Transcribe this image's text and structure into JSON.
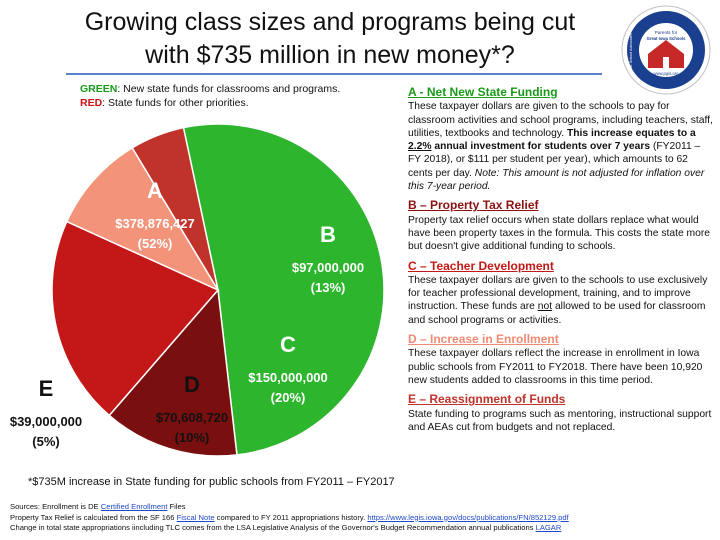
{
  "title_line1": "Growing class sizes and programs being cut",
  "title_line2": "with $735 million in new money*?",
  "logo": {
    "line1": "Parents for",
    "line2": "Great Iowa Schools",
    "circle_text": "Public School Advocates",
    "url": "www.pgis.org"
  },
  "legend": {
    "green_key": "GREEN",
    "green_text": ": New state funds for classrooms and programs.",
    "red_key": "RED",
    "red_text": ": State funds for other priorities."
  },
  "colors": {
    "A": "#2db52d",
    "B": "#7a0f0f",
    "C": "#c41818",
    "D": "#f2937a",
    "E": "#c0332a"
  },
  "chart_data": {
    "type": "pie",
    "slices": [
      {
        "label": "A",
        "value": 378876427,
        "display": "$378,876,427",
        "percent": "(52%)"
      },
      {
        "label": "B",
        "value": 97000000,
        "display": "$97,000,000",
        "percent": "(13%)"
      },
      {
        "label": "C",
        "value": 150000000,
        "display": "$150,000,000",
        "percent": "(20%)"
      },
      {
        "label": "D",
        "value": 70608720,
        "display": "$70,608,720",
        "percent": "(10%)"
      },
      {
        "label": "E",
        "value": 39000000,
        "display": "$39,000,000",
        "percent": "(5%)"
      }
    ]
  },
  "footnote": "*$735M increase in State funding for public schools from FY2011 – FY2017",
  "sources": {
    "l1_pre": "Sources: Enrollment is DE ",
    "l1_link": "Certified Enrollment",
    "l1_post": " Files",
    "l2_pre": "Property Tax Relief is calculated from the SF 166 ",
    "l2_link": "Fiscal Note",
    "l2_mid": " compared to FY 2011 appropriations history.  ",
    "l2_url": "https://www.legis.iowa.gov/docs/publications/FN/852129.pdf",
    "l3_pre": "Change in total state appropriations iincluding TLC comes from the LSA Legislative Analysis of the Governor's Budget Recommendation annual publications ",
    "l3_link": "LAGAR"
  },
  "sections": {
    "a": {
      "title": "A - Net New State Funding",
      "t1": "These taxpayer dollars are given to the schools to pay for classroom activities and school programs, including teachers, staff, utilities, textbooks and technology. ",
      "t2": "This increase equates to a ",
      "t3": "2.2%",
      "t4": " annual investment for students over 7 years",
      "t5": " (FY2011 – FY 2018), or $111 per student per year), which amounts to 62 cents per day. ",
      "t6": "Note: This amount is not adjusted for inflation over this 7-year period."
    },
    "b": {
      "title": "B – Property Tax Relief",
      "text": "Property tax relief occurs when state dollars replace  what would have been property taxes in the formula. This costs the state more but doesn't give additional  funding to schools."
    },
    "c": {
      "title": "C – Teacher Development",
      "t1": "These taxpayer dollars are given to the schools to use exclusively for teacher professional development, training, and to improve instruction. These funds are  ",
      "t2": "not",
      "t3": " allowed to be used for classroom and school programs or activities."
    },
    "d": {
      "title": "D – Increase in Enrollment",
      "text": "These taxpayer dollars reflect the increase in enrollment in Iowa public schools from FY2011 to FY2018. There have been 10,920 new students added to classrooms in this time period."
    },
    "e": {
      "title": "E – Reassignment of Funds",
      "text": "State funding to programs such as mentoring, instructional support and AEAs cut from budgets and not replaced."
    }
  }
}
